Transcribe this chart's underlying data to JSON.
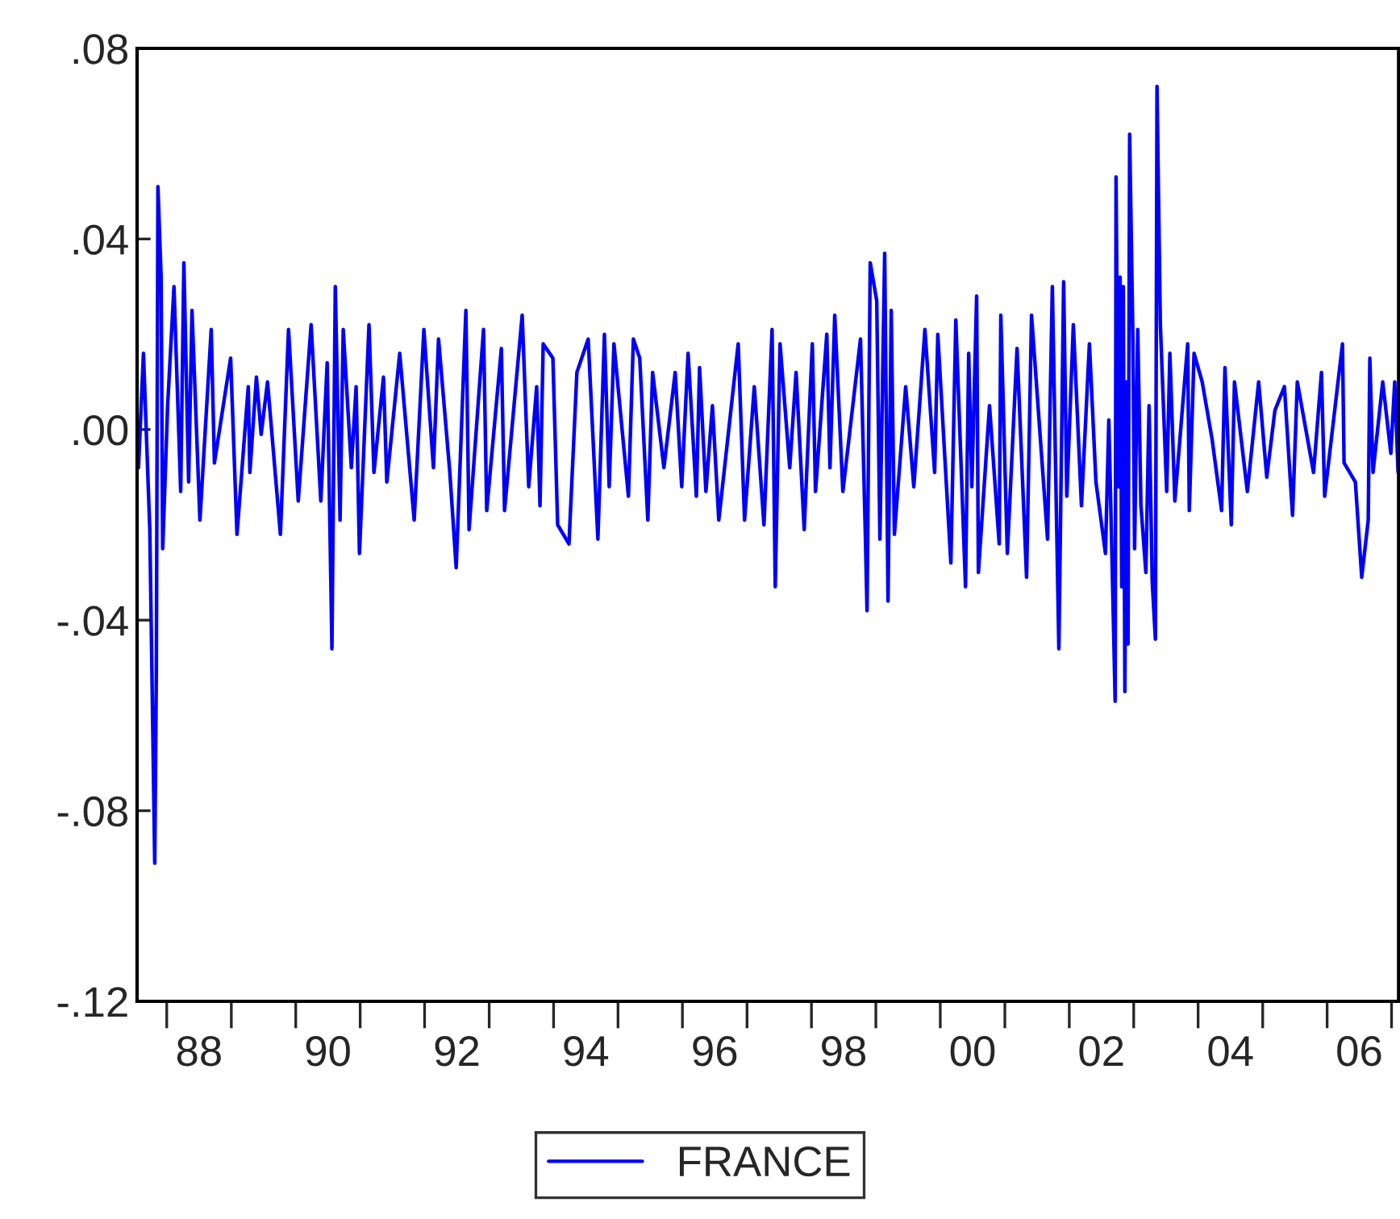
{
  "chart_data": {
    "type": "line",
    "xlim": [
      "1987-07-17",
      "2007-02-10"
    ],
    "ylim": [
      -0.12,
      0.08
    ],
    "yticks": [
      {
        "value": -0.12,
        "label": "-.12"
      },
      {
        "value": -0.08,
        "label": "-.08"
      },
      {
        "value": -0.04,
        "label": "-.04"
      },
      {
        "value": 0.0,
        "label": ".00"
      },
      {
        "value": 0.04,
        "label": ".04"
      },
      {
        "value": 0.08,
        "label": ".08"
      }
    ],
    "xticks": [
      {
        "value": "1988-07-02",
        "label": "88"
      },
      {
        "value": "1990-07-02",
        "label": "90"
      },
      {
        "value": "1992-07-02",
        "label": "92"
      },
      {
        "value": "1994-07-02",
        "label": "94"
      },
      {
        "value": "1996-07-02",
        "label": "96"
      },
      {
        "value": "1998-07-02",
        "label": "98"
      },
      {
        "value": "2000-07-02",
        "label": "00"
      },
      {
        "value": "2002-07-02",
        "label": "02"
      },
      {
        "value": "2004-07-02",
        "label": "04"
      },
      {
        "value": "2006-07-02",
        "label": "06"
      }
    ],
    "grid": false,
    "legend": "bottom",
    "marker": "none",
    "line_style": "solid",
    "x": [
      "1987-07-25",
      "1987-08-22",
      "1987-09-27",
      "1987-10-25",
      "1987-11-03",
      "1987-11-12",
      "1987-11-30",
      "1987-12-09",
      "1988-01-06",
      "1988-02-11",
      "1988-03-20",
      "1988-04-07",
      "1988-05-04",
      "1988-05-23",
      "1988-07-07",
      "1988-09-09",
      "1988-09-27",
      "1988-12-28",
      "1989-02-02",
      "1989-04-07",
      "1989-04-16",
      "1989-05-23",
      "1989-06-19",
      "1989-07-25",
      "1989-10-06",
      "1989-11-21",
      "1990-01-15",
      "1990-03-29",
      "1990-05-23",
      "1990-06-28",
      "1990-07-25",
      "1990-08-13",
      "1990-09-09",
      "1990-09-27",
      "1990-11-12",
      "1990-12-09",
      "1990-12-28",
      "1991-02-20",
      "1991-03-20",
      "1991-05-13",
      "1991-06-01",
      "1991-08-13",
      "1991-11-03",
      "1991-12-28",
      "1992-02-20",
      "1992-03-20",
      "1992-05-23",
      "1992-06-28",
      "1992-08-22",
      "1992-09-09",
      "1992-11-30",
      "1992-12-18",
      "1993-03-11",
      "1993-03-29",
      "1993-07-07",
      "1993-08-13",
      "1993-09-27",
      "1993-10-16",
      "1993-11-03",
      "1993-12-28",
      "1994-01-24",
      "1994-03-29",
      "1994-05-13",
      "1994-07-16",
      "1994-09-09",
      "1994-10-16",
      "1994-11-12",
      "1994-12-09",
      "1995-03-01",
      "1995-03-29",
      "1995-05-04",
      "1995-06-19",
      "1995-07-16",
      "1995-09-18",
      "1995-11-21",
      "1995-12-28",
      "1996-02-02",
      "1996-03-20",
      "1996-04-07",
      "1996-05-13",
      "1996-06-19",
      "1996-07-25",
      "1996-11-12",
      "1996-12-18",
      "1997-02-11",
      "1997-04-07",
      "1997-05-23",
      "1997-06-10",
      "1997-07-07",
      "1997-08-31",
      "1997-10-06",
      "1997-11-21",
      "1998-01-06",
      "1998-01-24",
      "1998-03-29",
      "1998-04-16",
      "1998-05-13",
      "1998-06-28",
      "1998-10-06",
      "1998-11-03",
      "1998-11-12",
      "1998-11-30",
      "1999-01-06",
      "1999-01-24",
      "1999-02-20",
      "1999-03-11",
      "1999-03-29",
      "1999-04-16",
      "1999-06-19",
      "1999-08-04",
      "1999-10-06",
      "1999-11-30",
      "1999-12-18",
      "2000-03-01",
      "2000-03-29",
      "2000-05-23",
      "2000-06-10",
      "2000-06-28",
      "2000-07-25",
      "2000-08-04",
      "2000-10-06",
      "2000-11-30",
      "2000-12-09",
      "2001-01-15",
      "2001-03-11",
      "2001-05-04",
      "2001-06-01",
      "2001-08-31",
      "2001-09-27",
      "2001-11-03",
      "2001-11-30",
      "2001-12-18",
      "2002-01-24",
      "2002-03-11",
      "2002-04-25",
      "2002-06-01",
      "2002-07-25",
      "2002-08-13",
      "2002-08-31",
      "2002-09-18",
      "2002-09-23",
      "2002-10-06",
      "2002-10-16",
      "2002-10-25",
      "2002-11-03",
      "2002-11-12",
      "2002-11-21",
      "2002-11-30",
      "2002-12-09",
      "2002-12-28",
      "2003-01-06",
      "2003-01-24",
      "2003-02-11",
      "2003-03-11",
      "2003-03-29",
      "2003-04-16",
      "2003-05-04",
      "2003-05-13",
      "2003-06-01",
      "2003-07-07",
      "2003-07-25",
      "2003-08-22",
      "2003-11-03",
      "2003-11-12",
      "2003-12-09",
      "2004-01-24",
      "2004-03-20",
      "2004-05-13",
      "2004-06-01",
      "2004-07-07",
      "2004-07-25",
      "2004-10-06",
      "2004-12-09",
      "2005-01-24",
      "2005-03-11",
      "2005-05-04",
      "2005-06-19",
      "2005-07-16",
      "2005-10-16",
      "2005-11-30",
      "2005-12-18",
      "2006-03-29",
      "2006-04-07",
      "2006-06-10",
      "2006-07-16",
      "2006-08-22",
      "2006-08-31",
      "2006-09-18",
      "2006-11-12",
      "2006-12-28",
      "2007-01-19",
      "2007-02-07"
    ],
    "series": [
      {
        "name": "FRANCE",
        "color": "#0000ff",
        "values": [
          -0.008,
          0.016,
          -0.021,
          -0.091,
          -0.051,
          0.051,
          0.032,
          -0.025,
          0.005,
          0.03,
          -0.013,
          0.035,
          -0.011,
          0.025,
          -0.019,
          0.021,
          -0.007,
          0.015,
          -0.022,
          0.009,
          -0.009,
          0.011,
          -0.001,
          0.01,
          -0.022,
          0.021,
          -0.015,
          0.022,
          -0.015,
          0.014,
          -0.046,
          0.03,
          -0.019,
          0.021,
          -0.008,
          0.009,
          -0.026,
          0.022,
          -0.009,
          0.011,
          -0.011,
          0.016,
          -0.019,
          0.021,
          -0.008,
          0.019,
          -0.009,
          -0.029,
          0.025,
          -0.021,
          0.021,
          -0.017,
          0.017,
          -0.017,
          0.024,
          -0.012,
          0.009,
          -0.016,
          0.018,
          0.015,
          -0.02,
          -0.024,
          0.012,
          0.019,
          -0.023,
          0.02,
          -0.012,
          0.018,
          -0.014,
          0.019,
          0.015,
          -0.019,
          0.012,
          -0.008,
          0.012,
          -0.012,
          0.016,
          -0.014,
          0.013,
          -0.013,
          0.005,
          -0.019,
          0.018,
          -0.019,
          0.009,
          -0.02,
          0.021,
          -0.033,
          0.018,
          -0.008,
          0.012,
          -0.021,
          0.018,
          -0.013,
          0.02,
          -0.008,
          0.024,
          -0.013,
          0.019,
          -0.023,
          -0.038,
          0.035,
          0.027,
          -0.023,
          0.037,
          -0.036,
          0.025,
          -0.022,
          0.009,
          -0.012,
          0.021,
          -0.009,
          0.02,
          -0.028,
          0.023,
          -0.033,
          0.016,
          -0.012,
          0.028,
          -0.03,
          0.005,
          -0.024,
          0.024,
          -0.026,
          0.017,
          -0.031,
          0.024,
          -0.023,
          0.03,
          -0.046,
          0.031,
          -0.014,
          0.022,
          -0.016,
          0.018,
          -0.011,
          -0.026,
          0.002,
          -0.027,
          -0.057,
          0.053,
          -0.012,
          0.032,
          -0.033,
          0.03,
          -0.055,
          0.01,
          -0.045,
          0.062,
          0.018,
          -0.025,
          0.021,
          -0.016,
          -0.03,
          0.005,
          -0.032,
          -0.044,
          0.072,
          0.022,
          -0.013,
          0.016,
          -0.015,
          0.018,
          -0.017,
          0.016,
          0.01,
          -0.002,
          -0.017,
          0.013,
          -0.02,
          0.01,
          -0.013,
          0.01,
          -0.01,
          0.004,
          0.009,
          -0.018,
          0.01,
          -0.009,
          0.012,
          -0.014,
          0.018,
          -0.007,
          -0.011,
          -0.031,
          -0.019,
          0.015,
          -0.009,
          0.01,
          -0.005,
          0.01,
          -0.009
        ]
      }
    ]
  }
}
